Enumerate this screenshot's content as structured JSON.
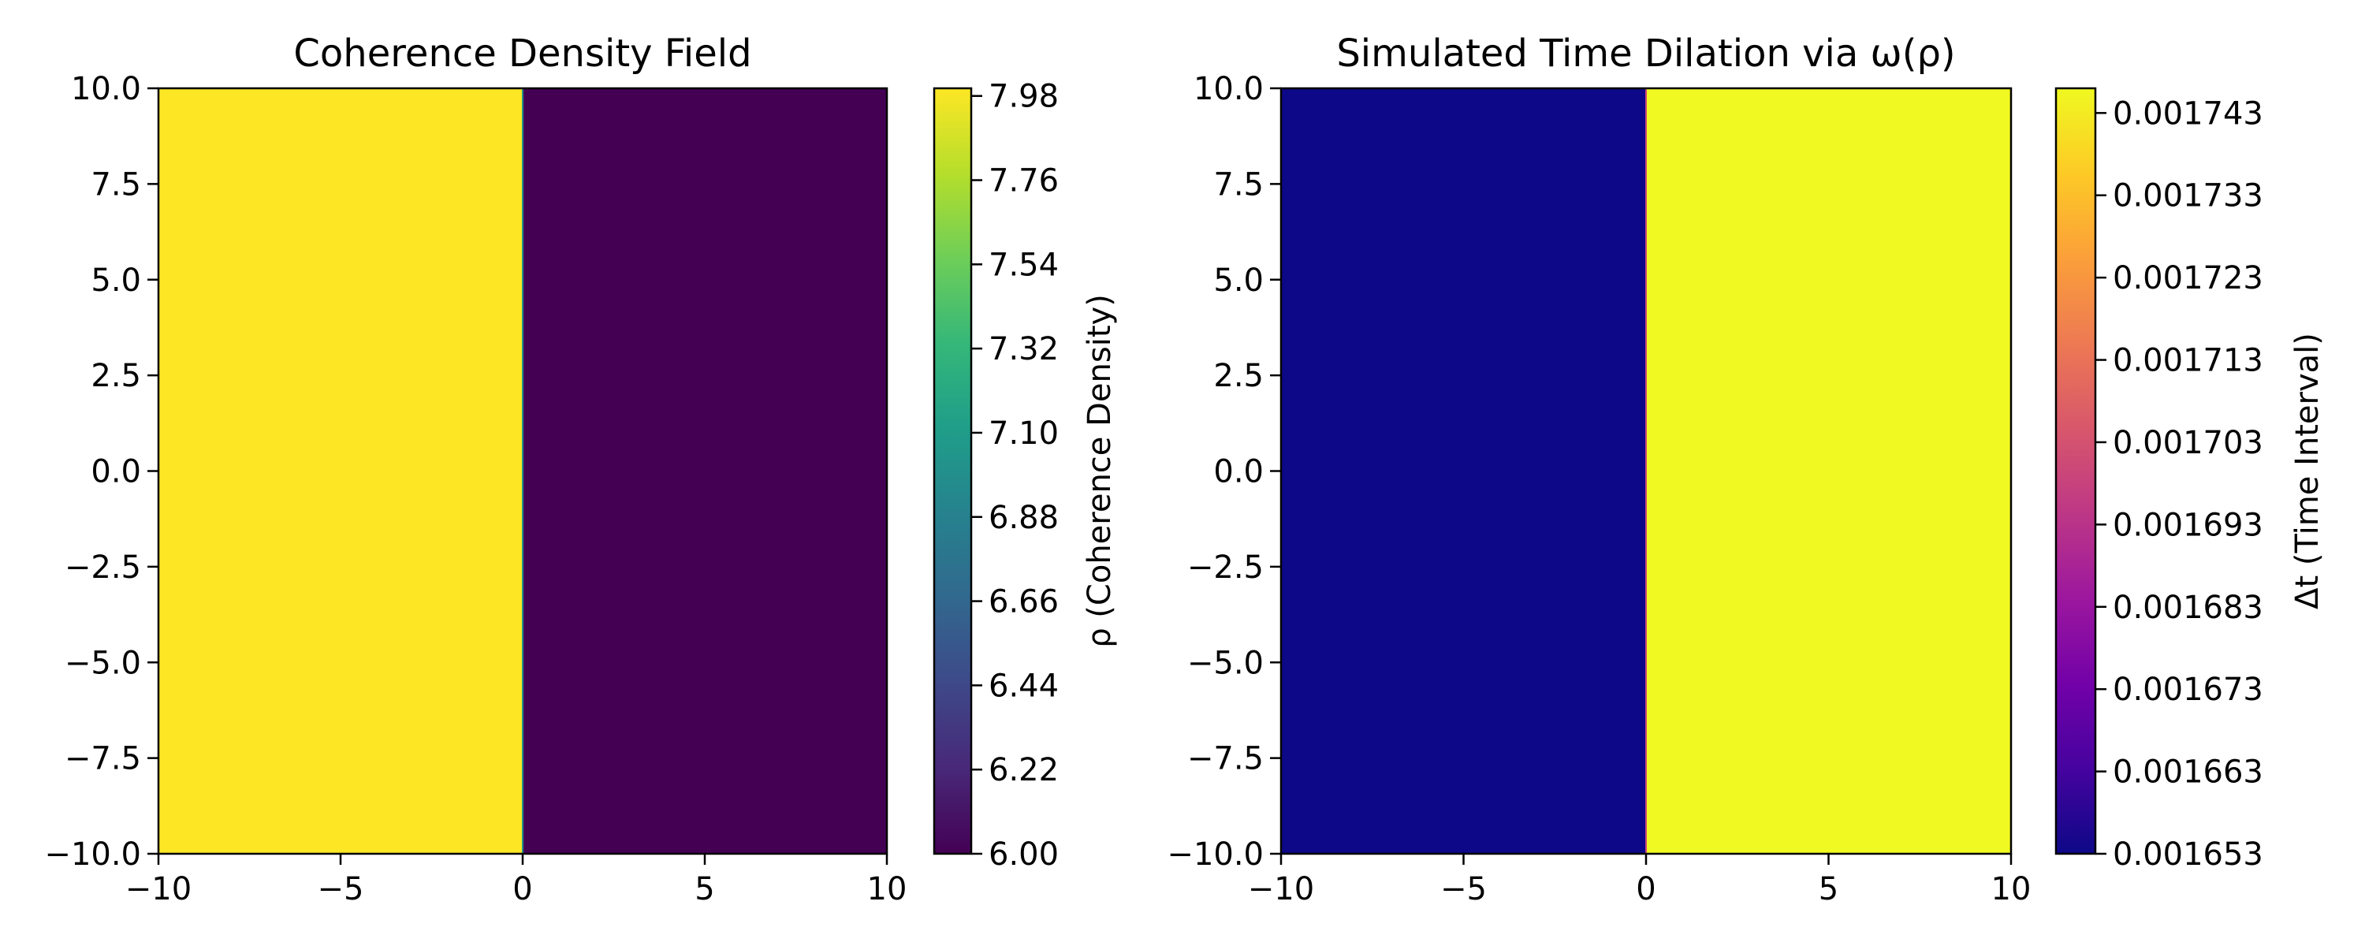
{
  "chart_data": [
    {
      "type": "heatmap",
      "title": "Coherence Density Field",
      "xlabel": "",
      "ylabel": "",
      "xlim": [
        -10,
        10
      ],
      "ylim": [
        -10,
        10
      ],
      "x_ticks": [
        -10,
        -5,
        0,
        5,
        10
      ],
      "x_tick_labels": [
        "−10",
        "−5",
        "0",
        "5",
        "10"
      ],
      "y_ticks": [
        10,
        7.5,
        5,
        2.5,
        0,
        -2.5,
        -5,
        -7.5,
        -10
      ],
      "y_tick_labels": [
        "10.0",
        "7.5",
        "5.0",
        "2.5",
        "0.0",
        "−2.5",
        "−5.0",
        "−7.5",
        "−10.0"
      ],
      "colormap": "viridis",
      "regions": [
        {
          "x_range": [
            -10,
            0
          ],
          "value": 8.0
        },
        {
          "x_range": [
            0,
            10
          ],
          "value": 6.0
        }
      ],
      "colorbar": {
        "label": "ρ (Coherence Density)",
        "range": [
          6.0,
          8.0
        ],
        "ticks": [
          7.98,
          7.76,
          7.54,
          7.32,
          7.1,
          6.88,
          6.66,
          6.44,
          6.22,
          6.0
        ],
        "tick_labels": [
          "7.98",
          "7.76",
          "7.54",
          "7.32",
          "7.10",
          "6.88",
          "6.66",
          "6.44",
          "6.22",
          "6.00"
        ],
        "colors": [
          "#440154",
          "#482878",
          "#3e4989",
          "#31688e",
          "#26828e",
          "#1f9e89",
          "#35b779",
          "#6ece58",
          "#b5de2b",
          "#fde725"
        ]
      }
    },
    {
      "type": "heatmap",
      "title": "Simulated Time Dilation via ω(ρ)",
      "xlabel": "",
      "ylabel": "",
      "xlim": [
        -10,
        10
      ],
      "ylim": [
        -10,
        10
      ],
      "x_ticks": [
        -10,
        -5,
        0,
        5,
        10
      ],
      "x_tick_labels": [
        "−10",
        "−5",
        "0",
        "5",
        "10"
      ],
      "y_ticks": [
        10,
        7.5,
        5,
        2.5,
        0,
        -2.5,
        -5,
        -7.5,
        -10
      ],
      "y_tick_labels": [
        "10.0",
        "7.5",
        "5.0",
        "2.5",
        "0.0",
        "−2.5",
        "−5.0",
        "−7.5",
        "−10.0"
      ],
      "colormap": "plasma",
      "regions": [
        {
          "x_range": [
            -10,
            0
          ],
          "value": 0.001653
        },
        {
          "x_range": [
            0,
            10
          ],
          "value": 0.001746
        }
      ],
      "colorbar": {
        "label": "Δt (Time Interval)",
        "range": [
          0.001653,
          0.001746
        ],
        "ticks": [
          0.001743,
          0.001733,
          0.001723,
          0.001713,
          0.001703,
          0.001693,
          0.001683,
          0.001673,
          0.001663,
          0.001653
        ],
        "tick_labels": [
          "0.001743",
          "0.001733",
          "0.001723",
          "0.001713",
          "0.001703",
          "0.001693",
          "0.001683",
          "0.001673",
          "0.001663",
          "0.001653"
        ],
        "colors": [
          "#0d0887",
          "#46039f",
          "#7201a8",
          "#9c179e",
          "#bd3786",
          "#d8576b",
          "#ed7953",
          "#fb9f3a",
          "#fdca26",
          "#f0f921"
        ]
      }
    }
  ]
}
